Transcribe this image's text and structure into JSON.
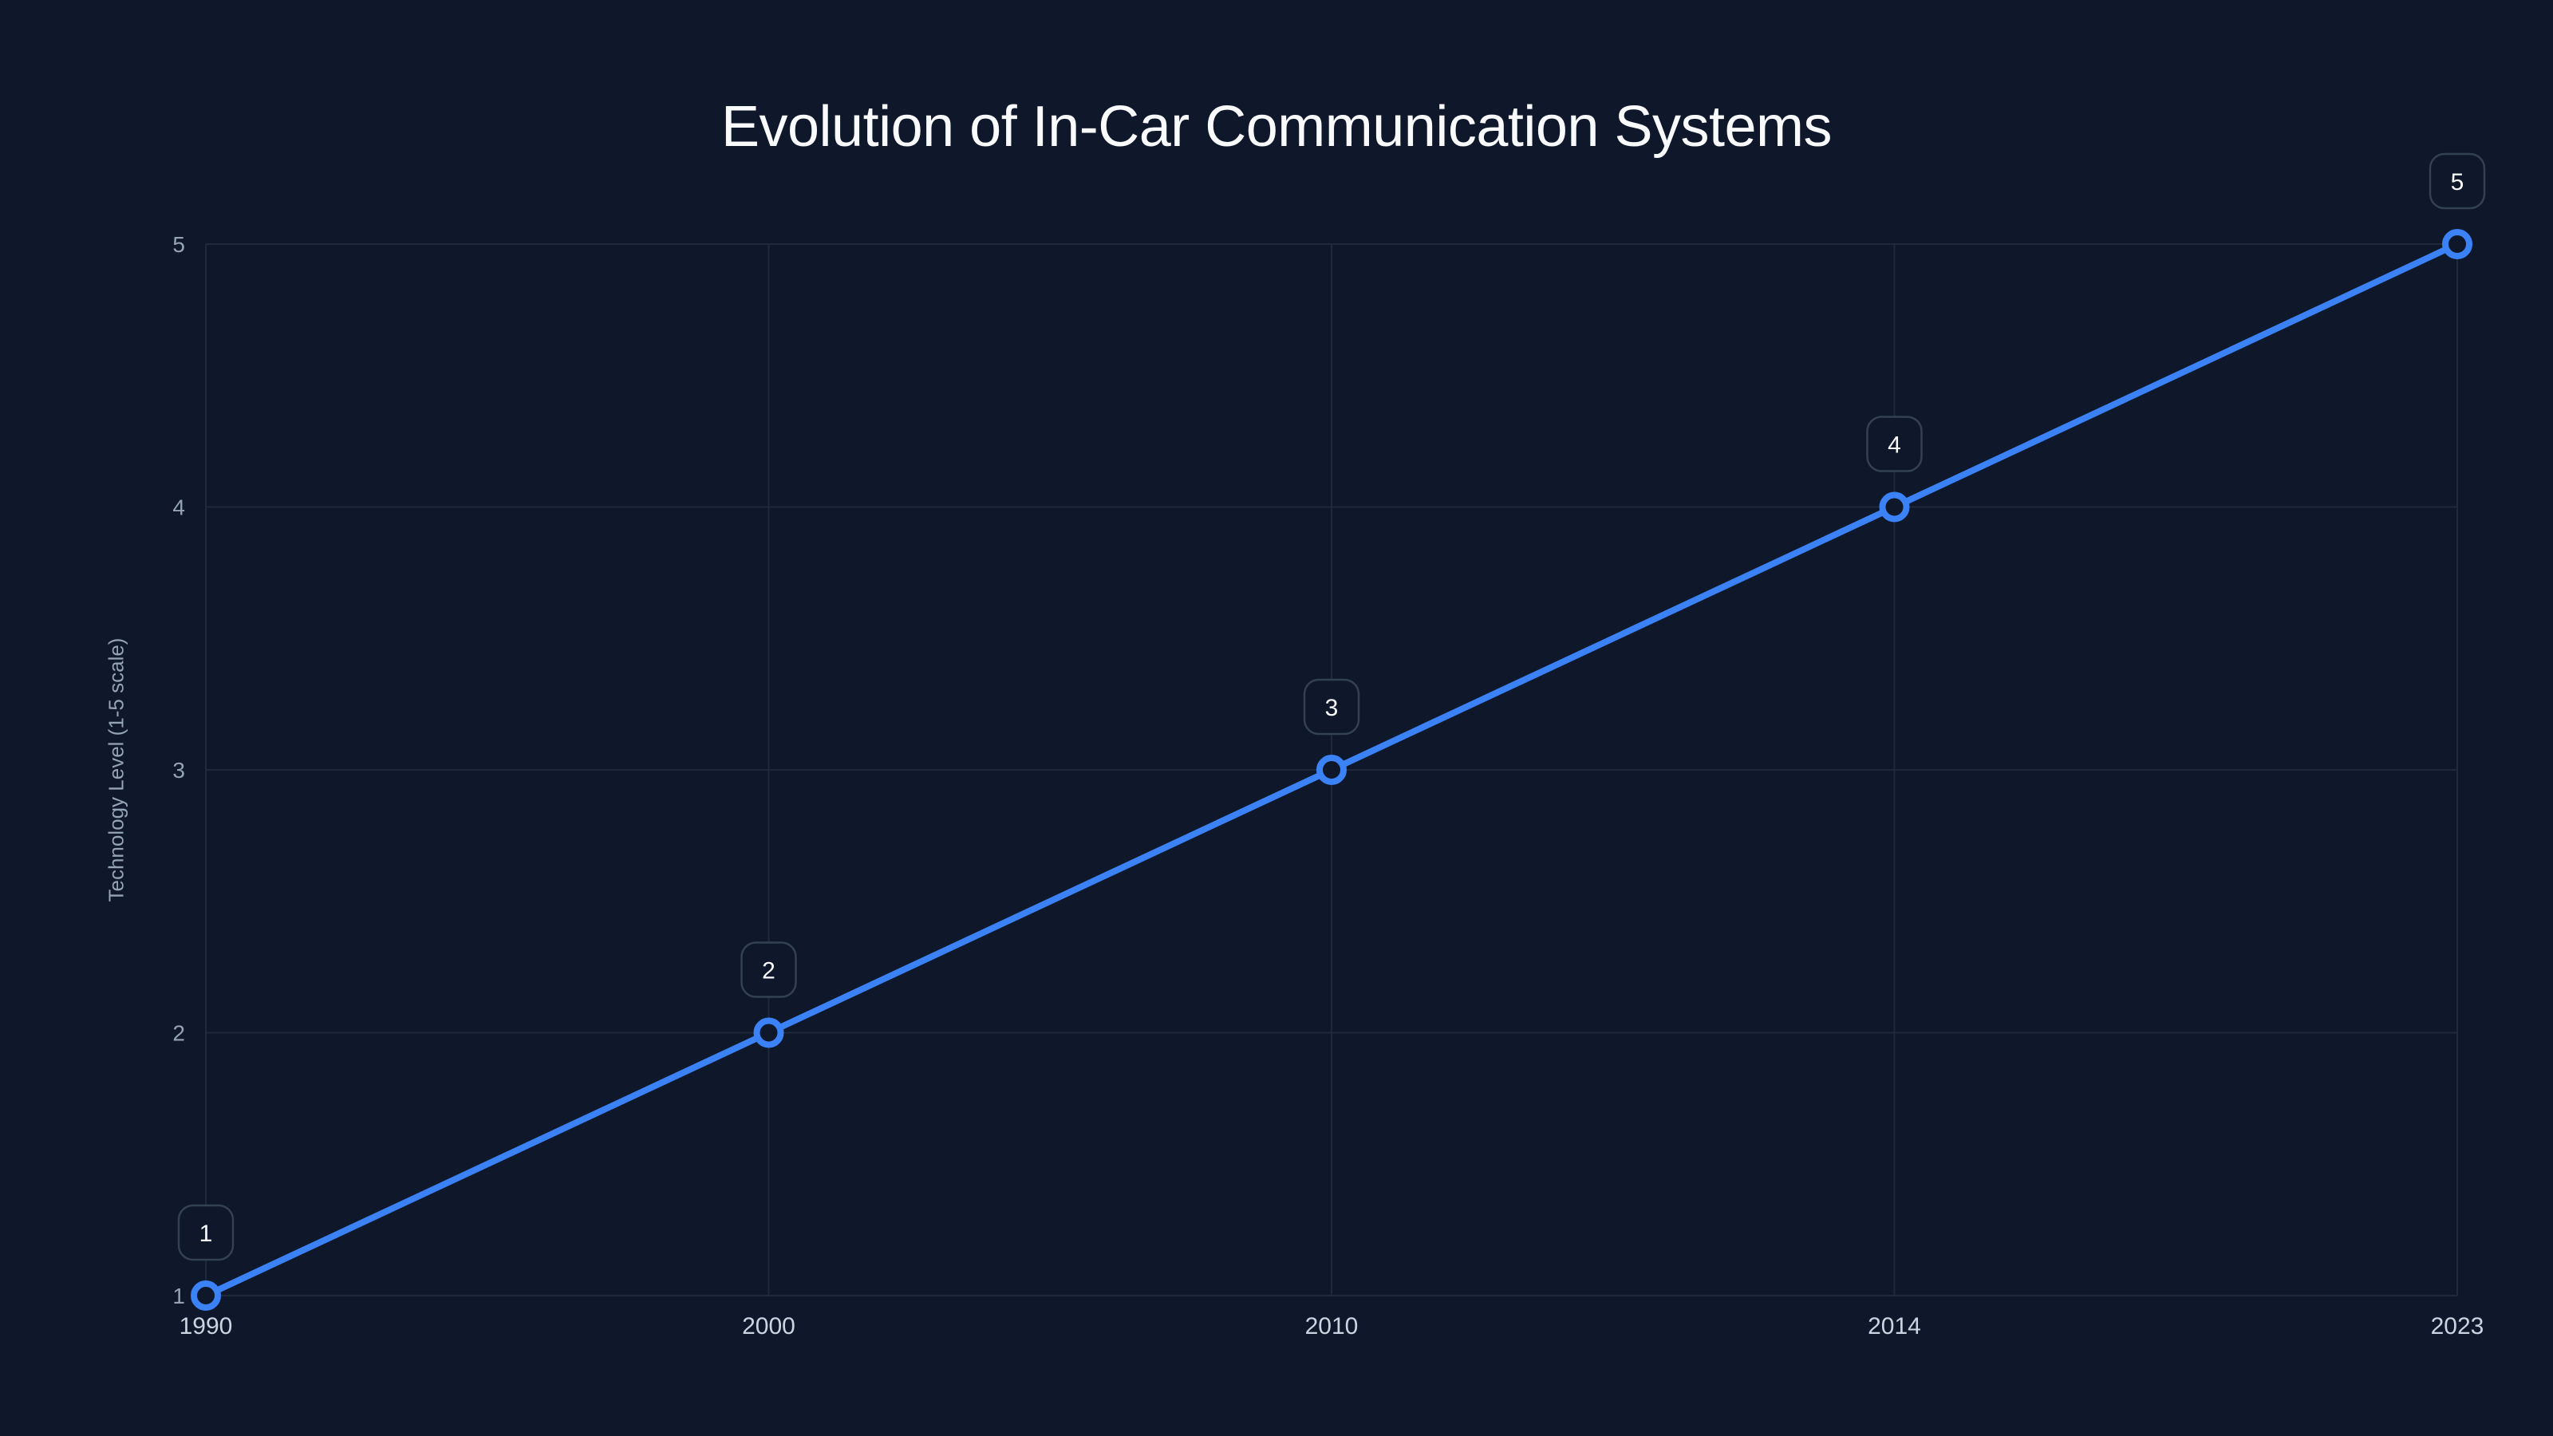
{
  "chart_data": {
    "type": "line",
    "title": "Evolution of In-Car Communication Systems",
    "xlabel": "",
    "ylabel": "Technology Level (1-5 scale)",
    "categories": [
      "1990",
      "2000",
      "2010",
      "2014",
      "2023"
    ],
    "series": [
      {
        "name": "Technology Level",
        "values": [
          1,
          2,
          3,
          4,
          5
        ],
        "color": "#3b82f6"
      }
    ],
    "data_labels": [
      "1",
      "2",
      "3",
      "4",
      "5"
    ],
    "y_ticks": [
      "1",
      "2",
      "3",
      "4",
      "5"
    ],
    "ylim": [
      1,
      5
    ],
    "grid": true,
    "legend": "none"
  },
  "colors": {
    "background": "#0f172a",
    "line": "#3b82f6",
    "grid": "#1e293b",
    "title": "#f8fafc",
    "axis_text": "#94a3b8"
  }
}
